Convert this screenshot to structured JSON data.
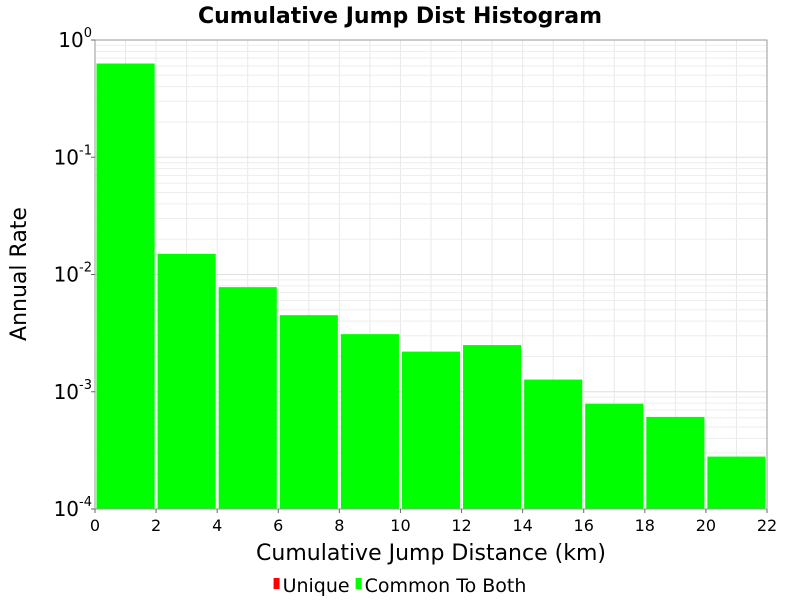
{
  "chart_data": {
    "type": "bar",
    "title": "Cumulative Jump Dist Histogram",
    "xlabel": "Cumulative Jump Distance (km)",
    "ylabel": "Annual Rate",
    "yscale": "log",
    "xlim": [
      0,
      22
    ],
    "ylim": [
      0.0001,
      1
    ],
    "x_ticks": [
      "0",
      "2",
      "4",
      "6",
      "8",
      "10",
      "12",
      "14",
      "16",
      "18",
      "20",
      "22"
    ],
    "y_ticks": [
      {
        "base": "10",
        "exp": "0"
      },
      {
        "base": "10",
        "exp": "-1"
      },
      {
        "base": "10",
        "exp": "-2"
      },
      {
        "base": "10",
        "exp": "-3"
      },
      {
        "base": "10",
        "exp": "-4"
      }
    ],
    "grid": true,
    "legend_position": "bottom",
    "series": [
      {
        "name": "Unique",
        "color": "#ff0000",
        "bins": []
      },
      {
        "name": "Common To Both",
        "color": "#00ff00",
        "bins": [
          {
            "x0": 0,
            "x1": 2,
            "value": 0.63
          },
          {
            "x0": 2,
            "x1": 4,
            "value": 0.015
          },
          {
            "x0": 4,
            "x1": 6,
            "value": 0.0078
          },
          {
            "x0": 6,
            "x1": 8,
            "value": 0.0045
          },
          {
            "x0": 8,
            "x1": 10,
            "value": 0.0031
          },
          {
            "x0": 10,
            "x1": 12,
            "value": 0.0022
          },
          {
            "x0": 12,
            "x1": 14,
            "value": 0.0025
          },
          {
            "x0": 14,
            "x1": 16,
            "value": 0.00127
          },
          {
            "x0": 16,
            "x1": 18,
            "value": 0.00079
          },
          {
            "x0": 18,
            "x1": 20,
            "value": 0.00061
          },
          {
            "x0": 20,
            "x1": 22,
            "value": 0.00028
          }
        ]
      }
    ]
  }
}
